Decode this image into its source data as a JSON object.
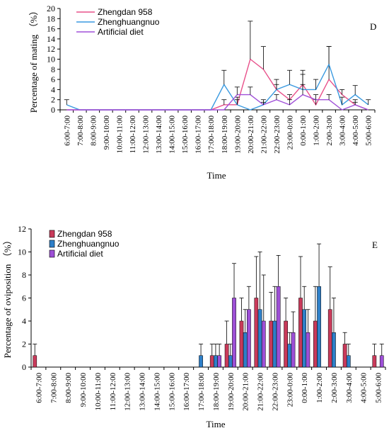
{
  "chart_data": [
    {
      "type": "line",
      "panel": "D",
      "xlabel": "Time",
      "ylabel": "Percentage of mating （%）",
      "ylim": [
        0,
        20
      ],
      "yticks": [
        0,
        2,
        4,
        6,
        8,
        10,
        12,
        14,
        16,
        18,
        20
      ],
      "legend_position": "top-left",
      "categories": [
        "6:00-7:00",
        "7:00-8:00",
        "8:00-9:00",
        "9:00-10:00",
        "10:00-11:00",
        "11:00-12:00",
        "12:00-13:00",
        "13:00-14:00",
        "14:00-15:00",
        "15:00-16:00",
        "16:00-17:00",
        "17:00-18:00",
        "18:00-19:00",
        "19:00-20:00",
        "20:00-21:00",
        "21:00-22:00",
        "22:00-23:00",
        "23:00-0:00",
        "0:00-1:00",
        "1:00-2:00",
        "2:00-3:00",
        "3:00-4:00",
        "4:00-5:00",
        "5:00-6:00"
      ],
      "series": [
        {
          "name": "Zhengdan 958",
          "color": "#e8508a",
          "values": [
            0,
            0,
            0,
            0,
            0,
            0,
            0,
            0,
            0,
            0,
            0,
            0,
            1,
            1,
            10,
            8,
            4,
            2,
            5,
            1,
            6,
            3,
            1,
            0
          ],
          "errors": [
            0,
            0,
            0,
            0,
            0,
            0,
            0,
            0,
            0,
            0,
            0,
            0,
            1,
            1,
            7.5,
            4.5,
            1,
            1,
            2,
            1,
            6.5,
            1,
            0.5,
            0
          ]
        },
        {
          "name": "Zhenghuangnuo",
          "color": "#3a9ae0",
          "values": [
            1,
            0,
            0,
            0,
            0,
            0,
            0,
            0,
            0,
            0,
            0,
            0,
            5,
            1,
            0,
            1,
            4,
            5,
            4,
            4,
            9,
            1,
            3,
            1
          ],
          "errors": [
            1,
            0,
            0,
            0,
            0,
            0,
            0,
            0,
            0,
            0,
            0,
            0,
            2.8,
            1.5,
            0,
            0.5,
            2,
            2.8,
            3.8,
            2,
            3.5,
            1.5,
            1.8,
            1
          ]
        },
        {
          "name": "Artificial diet",
          "color": "#a050d8",
          "values": [
            0,
            0,
            0,
            0,
            0,
            0,
            0,
            0,
            0,
            0,
            0,
            0,
            0,
            3,
            3,
            1,
            2,
            1,
            3,
            2,
            2,
            0,
            1,
            0
          ],
          "errors": [
            0,
            0,
            0,
            0,
            0,
            0,
            0,
            0,
            0,
            0,
            0,
            0,
            0,
            1.5,
            1.5,
            1,
            1,
            1,
            2,
            1,
            1,
            0,
            1,
            0
          ]
        }
      ]
    },
    {
      "type": "bar",
      "panel": "E",
      "xlabel": "Time",
      "ylabel": "Percentage of oviposition （%）",
      "ylim": [
        0,
        12
      ],
      "yticks": [
        0,
        2,
        4,
        6,
        8,
        10,
        12
      ],
      "legend_position": "top-left",
      "categories": [
        "6:00-7:00",
        "7:00-8:00",
        "8:00-9:00",
        "9:00-10:00",
        "10:00-11:00",
        "11:00-12:00",
        "12:00-13:00",
        "13:00-14:00",
        "14:00-15:00",
        "15:00-16:00",
        "16:00-17:00",
        "17:00-18:00",
        "18:00-19:00",
        "19:00-20:00",
        "20:00-21:00",
        "21:00-22:00",
        "22:00-23:00",
        "23:00-0:00",
        "0:00-1:00",
        "1:00-2:00",
        "2:00-3:00",
        "3:00-4:00",
        "4:00-5:00",
        "5:00-6:00"
      ],
      "series": [
        {
          "name": "Zhengdan 958",
          "color": "#c83a5a",
          "values": [
            1,
            0,
            0,
            0,
            0,
            0,
            0,
            0,
            0,
            0,
            0,
            0,
            1,
            2,
            4,
            6,
            4,
            4,
            6,
            4,
            5,
            2,
            0,
            1
          ],
          "errors": [
            1,
            0,
            0,
            0,
            0,
            0,
            0,
            0,
            0,
            0,
            0,
            0,
            1,
            2,
            2,
            3.6,
            2.5,
            2,
            3.6,
            3,
            3.7,
            1,
            0,
            1
          ]
        },
        {
          "name": "Zhenghuangnuo",
          "color": "#2e7fc8",
          "values": [
            0,
            0,
            0,
            0,
            0,
            0,
            0,
            0,
            0,
            0,
            0,
            1,
            1,
            1,
            3,
            5,
            4,
            2,
            5,
            7,
            3,
            1,
            0,
            0
          ],
          "errors": [
            0,
            0,
            0,
            0,
            0,
            0,
            0,
            0,
            0,
            0,
            0,
            1,
            1,
            1,
            2,
            5,
            3,
            1,
            2,
            3.7,
            3,
            1,
            0,
            0
          ]
        },
        {
          "name": "Artificial diet",
          "color": "#9d4fd6",
          "values": [
            0,
            0,
            0,
            0,
            0,
            0,
            0,
            0,
            0,
            0,
            0,
            0,
            1,
            6,
            5,
            4,
            7,
            3,
            3,
            0,
            0,
            0,
            0,
            1
          ],
          "errors": [
            0,
            0,
            0,
            0,
            0,
            0,
            0,
            0,
            0,
            0,
            0,
            0,
            1,
            3,
            2,
            4,
            2.7,
            1.8,
            2,
            0,
            0,
            0,
            0,
            1
          ]
        }
      ]
    }
  ]
}
